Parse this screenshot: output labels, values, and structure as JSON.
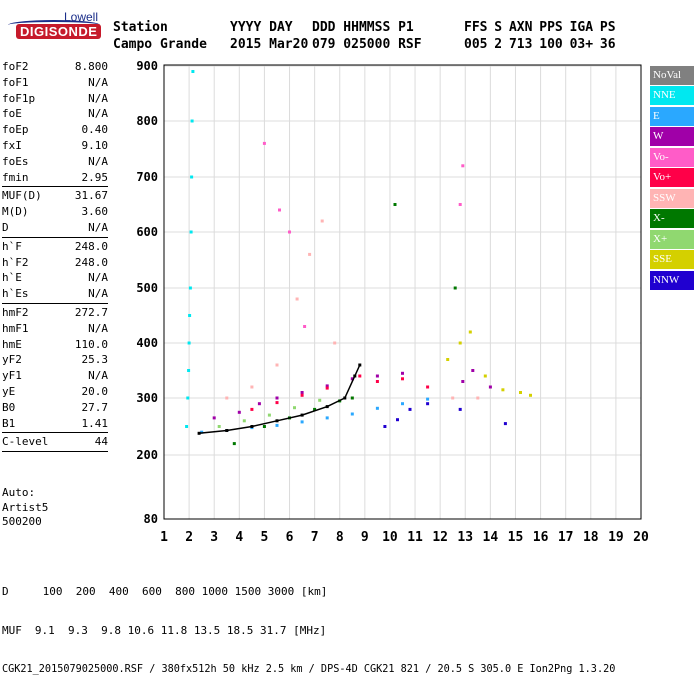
{
  "logo": {
    "company": "Lowell",
    "product": "DIGISONDE"
  },
  "header": {
    "labels": [
      "Station",
      "YYYY DAY",
      "DDD HHMMSS P1",
      "FFS S AXN PPS IGA PS"
    ],
    "values": [
      "Campo Grande",
      "2015 Mar20",
      "079 025000 RSF",
      "005 2 713 100 03+ 36"
    ]
  },
  "params": [
    {
      "k": "foF2",
      "v": "8.800"
    },
    {
      "k": "foF1",
      "v": "N/A"
    },
    {
      "k": "foF1p",
      "v": "N/A"
    },
    {
      "k": "foE",
      "v": "N/A"
    },
    {
      "k": "foEp",
      "v": "0.40"
    },
    {
      "k": "fxI",
      "v": "9.10"
    },
    {
      "k": "foEs",
      "v": "N/A"
    },
    {
      "k": "fmin",
      "v": "2.95"
    },
    {
      "sep": true
    },
    {
      "k": "MUF(D)",
      "v": "31.67"
    },
    {
      "k": "M(D)",
      "v": "3.60"
    },
    {
      "k": "D",
      "v": "N/A"
    },
    {
      "sep": true
    },
    {
      "k": "h`F",
      "v": "248.0"
    },
    {
      "k": "h`F2",
      "v": "248.0"
    },
    {
      "k": "h`E",
      "v": "N/A"
    },
    {
      "k": "h`Es",
      "v": "N/A"
    },
    {
      "sep": true
    },
    {
      "k": "hmF2",
      "v": "272.7"
    },
    {
      "k": "hmF1",
      "v": "N/A"
    },
    {
      "k": "hmE",
      "v": "110.0"
    },
    {
      "k": "yF2",
      "v": "25.3"
    },
    {
      "k": "yF1",
      "v": "N/A"
    },
    {
      "k": "yE",
      "v": "20.0"
    },
    {
      "k": "B0",
      "v": "27.7"
    },
    {
      "k": "B1",
      "v": "1.41"
    },
    {
      "sep": true
    },
    {
      "k": "C-level",
      "v": "44"
    },
    {
      "sep": true
    }
  ],
  "auto": {
    "line1": "Auto:",
    "line2": "Artist5",
    "line3": "500200"
  },
  "legend": [
    {
      "label": "NoVal",
      "color": "#808080",
      "text": "#ffffff"
    },
    {
      "label": "NNE",
      "color": "#00e8f0",
      "text": "#ffffff"
    },
    {
      "label": "E",
      "color": "#2aa8ff",
      "text": "#ffffff"
    },
    {
      "label": "W",
      "color": "#a000a8",
      "text": "#ffffff"
    },
    {
      "label": "Vo-",
      "color": "#ff5cc8",
      "text": "#ffffff"
    },
    {
      "label": "Vo+",
      "color": "#ff0048",
      "text": "#ffffff"
    },
    {
      "label": "SSW",
      "color": "#ffb4b4",
      "text": "#ffffff"
    },
    {
      "label": "X-",
      "color": "#007800",
      "text": "#ffffff"
    },
    {
      "label": "X+",
      "color": "#90d870",
      "text": "#ffffff"
    },
    {
      "label": "SSE",
      "color": "#d4d000",
      "text": "#ffffff"
    },
    {
      "label": "NNW",
      "color": "#2000d0",
      "text": "#ffffff"
    }
  ],
  "footer": {
    "d_label": "D",
    "d_values": "100  200  400  600  800 1000 1500 3000 [km]",
    "muf_label": "MUF",
    "muf_values": "9.1  9.3  9.8 10.6 11.8 13.5 18.5 31.7 [MHz]",
    "file_line": "CGK21_2015079025000.RSF / 380fx512h 50 kHz 2.5 km / DPS-4D CGK21 821 / 20.5 S 305.0 E Ion2Png 1.3.20"
  },
  "chart_data": {
    "type": "scatter",
    "title": "",
    "xlabel": "",
    "ylabel": "",
    "xlim": [
      1,
      20
    ],
    "ylim": [
      80,
      900
    ],
    "x_ticks": [
      1,
      2,
      3,
      4,
      5,
      6,
      7,
      8,
      9,
      10,
      11,
      12,
      13,
      14,
      15,
      16,
      17,
      18,
      19,
      20
    ],
    "y_ticks": [
      80,
      200,
      300,
      400,
      500,
      600,
      700,
      800,
      900
    ],
    "grid": true,
    "legend_position": "right",
    "series": [
      {
        "name": "NNE",
        "color": "#00e8f0",
        "points": [
          [
            1.9,
            250
          ],
          [
            1.95,
            300
          ],
          [
            1.98,
            350
          ],
          [
            2.0,
            400
          ],
          [
            2.02,
            450
          ],
          [
            2.05,
            500
          ],
          [
            2.08,
            600
          ],
          [
            2.1,
            700
          ],
          [
            2.12,
            800
          ],
          [
            2.15,
            890
          ]
        ]
      },
      {
        "name": "E",
        "color": "#2aa8ff",
        "points": [
          [
            2.5,
            240
          ],
          [
            3.5,
            243
          ],
          [
            4.5,
            248
          ],
          [
            5.5,
            252
          ],
          [
            6.5,
            258
          ],
          [
            7.5,
            265
          ],
          [
            8.5,
            272
          ],
          [
            9.5,
            282
          ],
          [
            10.5,
            290
          ],
          [
            11.5,
            298
          ]
        ]
      },
      {
        "name": "W",
        "color": "#a000a8",
        "points": [
          [
            3.0,
            265
          ],
          [
            4.0,
            275
          ],
          [
            4.8,
            290
          ],
          [
            5.5,
            300
          ],
          [
            6.5,
            310
          ],
          [
            7.5,
            322
          ],
          [
            8.5,
            335
          ],
          [
            9.5,
            340
          ],
          [
            10.5,
            345
          ],
          [
            12.9,
            330
          ],
          [
            13.3,
            350
          ],
          [
            14.0,
            320
          ]
        ]
      },
      {
        "name": "Vo-",
        "color": "#ff5cc8",
        "points": [
          [
            5.0,
            760
          ],
          [
            5.6,
            640
          ],
          [
            6.0,
            600
          ],
          [
            6.6,
            430
          ],
          [
            12.8,
            650
          ],
          [
            12.9,
            720
          ]
        ]
      },
      {
        "name": "Vo+",
        "color": "#ff0048",
        "points": [
          [
            4.5,
            280
          ],
          [
            5.5,
            292
          ],
          [
            6.5,
            305
          ],
          [
            7.5,
            318
          ],
          [
            8.8,
            340
          ],
          [
            9.5,
            330
          ],
          [
            10.5,
            335
          ],
          [
            11.5,
            320
          ]
        ]
      },
      {
        "name": "SSW",
        "color": "#ffb4b4",
        "points": [
          [
            3.5,
            300
          ],
          [
            4.5,
            320
          ],
          [
            5.5,
            360
          ],
          [
            6.3,
            480
          ],
          [
            6.8,
            560
          ],
          [
            7.3,
            620
          ],
          [
            7.8,
            400
          ],
          [
            8.5,
            300
          ],
          [
            12.5,
            300
          ],
          [
            13.5,
            300
          ]
        ]
      },
      {
        "name": "X-",
        "color": "#007800",
        "points": [
          [
            3.8,
            220
          ],
          [
            5.0,
            250
          ],
          [
            6.0,
            265
          ],
          [
            7.0,
            280
          ],
          [
            8.0,
            295
          ],
          [
            8.5,
            300
          ],
          [
            12.6,
            500
          ],
          [
            10.2,
            650
          ]
        ]
      },
      {
        "name": "X+",
        "color": "#90d870",
        "points": [
          [
            3.2,
            250
          ],
          [
            4.2,
            260
          ],
          [
            5.2,
            270
          ],
          [
            6.2,
            283
          ],
          [
            7.2,
            296
          ]
        ]
      },
      {
        "name": "SSE",
        "color": "#d4d000",
        "points": [
          [
            12.3,
            370
          ],
          [
            12.8,
            400
          ],
          [
            13.2,
            420
          ],
          [
            13.8,
            340
          ],
          [
            14.5,
            315
          ],
          [
            15.2,
            310
          ],
          [
            15.6,
            305
          ]
        ]
      },
      {
        "name": "NNW",
        "color": "#2000d0",
        "points": [
          [
            9.8,
            250
          ],
          [
            10.3,
            262
          ],
          [
            10.8,
            280
          ],
          [
            11.5,
            290
          ],
          [
            12.8,
            280
          ],
          [
            14.6,
            255
          ]
        ]
      },
      {
        "name": "",
        "color": "#000000",
        "points": [
          [
            2.4,
            238
          ],
          [
            3.5,
            243
          ],
          [
            4.5,
            250
          ],
          [
            5.5,
            260
          ],
          [
            6.5,
            270
          ],
          [
            7.5,
            285
          ],
          [
            8.2,
            300
          ],
          [
            8.6,
            340
          ],
          [
            8.8,
            360
          ]
        ]
      }
    ]
  }
}
